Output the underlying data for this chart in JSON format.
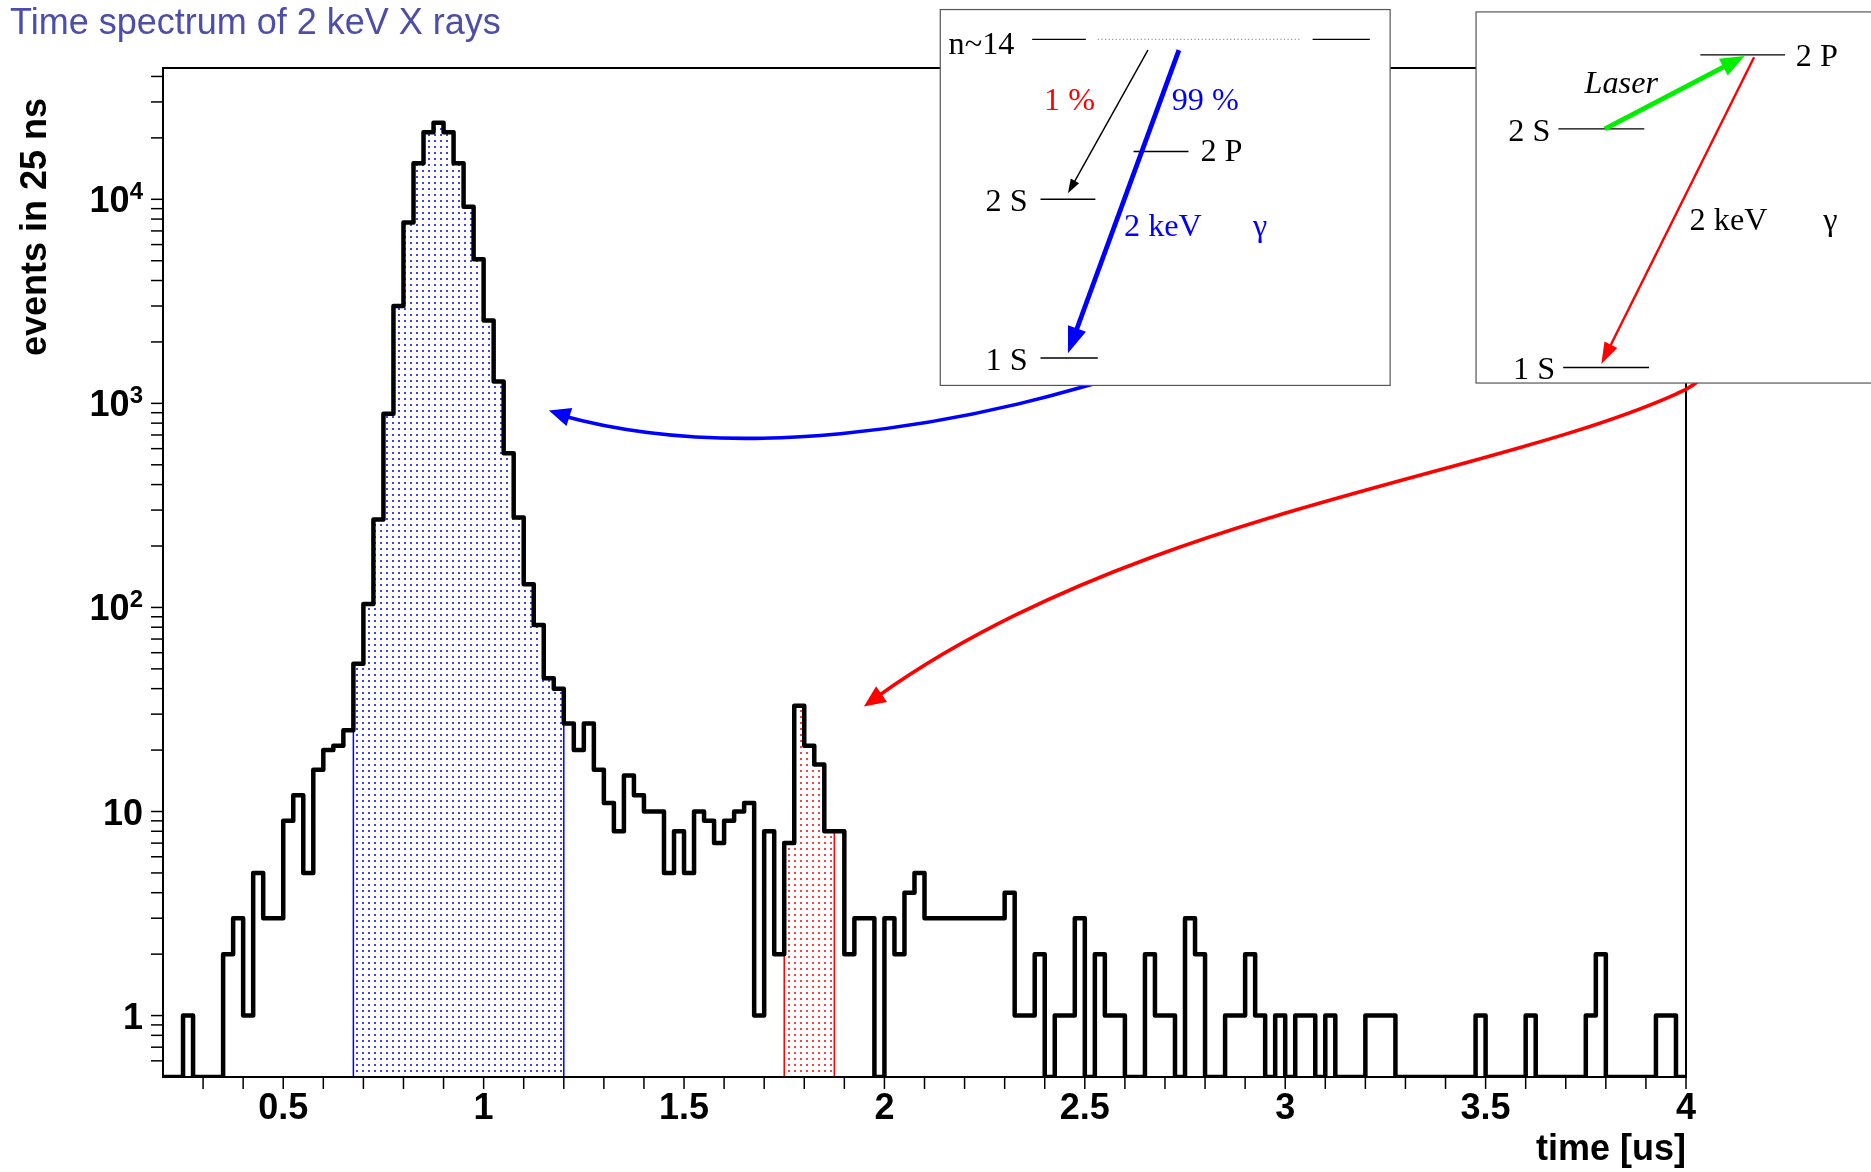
{
  "chart_data": {
    "type": "histogram",
    "title": "Time spectrum of 2 keV X rays",
    "xlabel": "time [us]",
    "ylabel": "events in 25 ns",
    "log": "y",
    "xlim": [
      0.2,
      4
    ],
    "ylim": [
      0.5,
      44000
    ],
    "xticks": [
      {
        "value": 0.3,
        "label": null
      },
      {
        "value": 0.4,
        "label": null
      },
      0.5,
      {
        "value": 0.6,
        "label": null
      },
      {
        "value": 0.7,
        "label": null
      },
      {
        "value": 0.8,
        "label": null
      },
      {
        "value": 0.9,
        "label": null
      },
      1,
      {
        "value": 1.1,
        "label": null
      },
      {
        "value": 1.2,
        "label": null
      },
      {
        "value": 1.3,
        "label": null
      },
      {
        "value": 1.4,
        "label": null
      },
      1.5,
      {
        "value": 1.6,
        "label": null
      },
      {
        "value": 1.7,
        "label": null
      },
      {
        "value": 1.8,
        "label": null
      },
      {
        "value": 1.9,
        "label": null
      },
      2,
      {
        "value": 2.1,
        "label": null
      },
      {
        "value": 2.2,
        "label": null
      },
      {
        "value": 2.3,
        "label": null
      },
      {
        "value": 2.4,
        "label": null
      },
      2.5,
      {
        "value": 2.6,
        "label": null
      },
      {
        "value": 2.7,
        "label": null
      },
      {
        "value": 2.8,
        "label": null
      },
      {
        "value": 2.9,
        "label": null
      },
      3,
      {
        "value": 3.1,
        "label": null
      },
      {
        "value": 3.2,
        "label": null
      },
      {
        "value": 3.3,
        "label": null
      },
      {
        "value": 3.4,
        "label": null
      },
      3.5,
      {
        "value": 3.6,
        "label": null
      },
      {
        "value": 3.7,
        "label": null
      },
      {
        "value": 3.8,
        "label": null
      },
      {
        "value": 3.9,
        "label": null
      },
      4
    ],
    "yticks": [
      {
        "value": 0.6,
        "label": null
      },
      {
        "value": 0.7,
        "label": null
      },
      {
        "value": 0.8,
        "label": null
      },
      {
        "value": 0.9,
        "label": null
      },
      1,
      {
        "value": 2,
        "label": null
      },
      {
        "value": 3,
        "label": null
      },
      {
        "value": 4,
        "label": null
      },
      {
        "value": 5,
        "label": null
      },
      {
        "value": 6,
        "label": null
      },
      {
        "value": 7,
        "label": null
      },
      {
        "value": 8,
        "label": null
      },
      {
        "value": 9,
        "label": null
      },
      10,
      {
        "value": 20,
        "label": null
      },
      {
        "value": 30,
        "label": null
      },
      {
        "value": 40,
        "label": null
      },
      {
        "value": 50,
        "label": null
      },
      {
        "value": 60,
        "label": null
      },
      {
        "value": 70,
        "label": null
      },
      {
        "value": 80,
        "label": null
      },
      {
        "value": 90,
        "label": null
      },
      {
        "value": 100,
        "label": "10$^{2}$"
      },
      {
        "value": 200,
        "label": null
      },
      {
        "value": 300,
        "label": null
      },
      {
        "value": 400,
        "label": null
      },
      {
        "value": 500,
        "label": null
      },
      {
        "value": 600,
        "label": null
      },
      {
        "value": 700,
        "label": null
      },
      {
        "value": 800,
        "label": null
      },
      {
        "value": 900,
        "label": null
      },
      {
        "value": 1000,
        "label": "10$^{3}$"
      },
      {
        "value": 2000,
        "label": null
      },
      {
        "value": 3000,
        "label": null
      },
      {
        "value": 4000,
        "label": null
      },
      {
        "value": 5000,
        "label": null
      },
      {
        "value": 6000,
        "label": null
      },
      {
        "value": 7000,
        "label": null
      },
      {
        "value": 8000,
        "label": null
      },
      {
        "value": 9000,
        "label": null
      },
      {
        "value": 10000,
        "label": "10$^{4}$"
      },
      {
        "value": 20000,
        "label": null
      },
      {
        "value": 30000,
        "label": null
      },
      {
        "value": 40000,
        "label": null
      }
    ],
    "bins": [
      0.2,
      0.225,
      0.25,
      0.275,
      0.3,
      0.325,
      0.35,
      0.375,
      0.4,
      0.425,
      0.45,
      0.475,
      0.5,
      0.525,
      0.55,
      0.575,
      0.6,
      0.625,
      0.65,
      0.675,
      0.7,
      0.725,
      0.75,
      0.775,
      0.8,
      0.825,
      0.85,
      0.875,
      0.9,
      0.925,
      0.95,
      0.975,
      1,
      1.025,
      1.05,
      1.075,
      1.1,
      1.125,
      1.15,
      1.175,
      1.2,
      1.225,
      1.25,
      1.275,
      1.3,
      1.325,
      1.35,
      1.375,
      1.4,
      1.425,
      1.45,
      1.475,
      1.5,
      1.525,
      1.55,
      1.575,
      1.6,
      1.625,
      1.65,
      1.675,
      1.7,
      1.725,
      1.75,
      1.775,
      1.8,
      1.825,
      1.85,
      1.875,
      1.9,
      1.925,
      1.95,
      1.975,
      2,
      2.025,
      2.05,
      2.075,
      2.1,
      2.125,
      2.15,
      2.175,
      2.2,
      2.225,
      2.25,
      2.275,
      2.3,
      2.325,
      2.35,
      2.375,
      2.4,
      2.425,
      2.45,
      2.475,
      2.5,
      2.525,
      2.55,
      2.575,
      2.6,
      2.625,
      2.65,
      2.675,
      2.7,
      2.725,
      2.75,
      2.775,
      2.8,
      2.825,
      2.85,
      2.875,
      2.9,
      2.925,
      2.95,
      2.975,
      3,
      3.025,
      3.05,
      3.075,
      3.1,
      3.125,
      3.15,
      3.175,
      3.2,
      3.225,
      3.25,
      3.275,
      3.3,
      3.325,
      3.35,
      3.375,
      3.4,
      3.425,
      3.45,
      3.475,
      3.5,
      3.525,
      3.55,
      3.575,
      3.6,
      3.625,
      3.65,
      3.675,
      3.7,
      3.725,
      3.75,
      3.775,
      3.8,
      3.825,
      3.85,
      3.875,
      3.9,
      3.925,
      3.95,
      3.975,
      4
    ],
    "series": [
      {
        "color": "#000000",
        "values": [
          null,
          null,
          1,
          null,
          null,
          null,
          2,
          3,
          1,
          5,
          3,
          3,
          9,
          12,
          5,
          16,
          20,
          21,
          25,
          53,
          104,
          270,
          890,
          3000,
          7700,
          15000,
          21300,
          23700,
          21300,
          15000,
          9200,
          5090,
          2550,
          1280,
          570,
          276,
          130,
          82,
          45,
          40,
          27,
          20,
          27,
          16,
          11,
          8,
          15,
          12,
          10,
          10,
          5,
          8,
          5,
          10,
          9,
          7,
          9,
          10,
          11,
          1,
          8,
          2,
          7,
          33,
          21,
          17,
          8,
          8,
          2,
          3,
          3,
          null,
          3,
          2,
          4,
          5,
          3,
          3,
          3,
          3,
          3,
          3,
          3,
          3,
          4,
          1,
          1,
          2,
          null,
          1,
          1,
          3,
          null,
          2,
          1,
          1,
          null,
          null,
          2,
          1,
          1,
          null,
          3,
          2,
          null,
          null,
          1,
          1,
          2,
          1,
          null,
          1,
          null,
          1,
          1,
          null,
          1,
          null,
          null,
          null,
          1,
          1,
          1,
          null,
          null,
          null,
          null,
          null,
          null,
          null,
          null,
          1,
          null,
          null,
          null,
          null,
          1,
          null,
          null,
          null,
          null,
          null,
          1,
          2,
          null,
          null,
          null,
          null,
          null,
          1,
          1,
          null
        ]
      },
      {
        "color": "#0000ff",
        "bins": [
          0.675,
          0.7,
          0.725,
          0.75,
          0.775,
          0.8,
          0.825,
          0.85,
          0.875,
          0.9,
          0.925,
          0.95,
          0.975,
          1,
          1.025,
          1.05,
          1.075,
          1.1,
          1.125,
          1.15,
          1.175,
          1.2
        ],
        "values": [
          53,
          104,
          270,
          890,
          3000,
          7700,
          15000,
          21300,
          23700,
          21300,
          15000,
          9200,
          5090,
          2550,
          1280,
          570,
          276,
          130,
          82,
          45,
          40
        ]
      },
      {
        "color": "#ff0000",
        "bins": [
          1.75,
          1.775,
          1.8,
          1.825,
          1.85,
          1.875
        ],
        "values": [
          7,
          33,
          21,
          17,
          8
        ]
      }
    ],
    "annotations": [
      "n~14",
      "1 %",
      "99 %",
      "2 P",
      "2 S",
      "2 keV",
      "γ",
      "1 S",
      "Laser",
      "2 P",
      "2 S",
      "2 keV",
      "γ",
      "1 S"
    ]
  }
}
